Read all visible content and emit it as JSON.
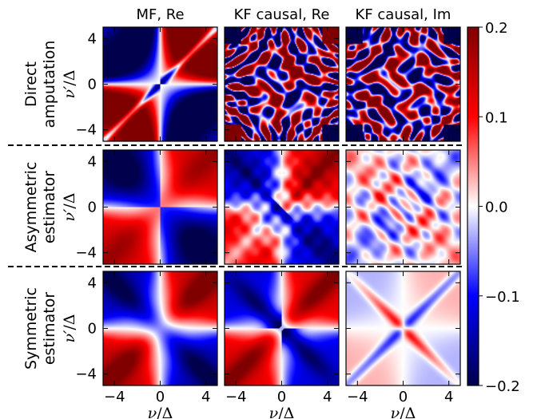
{
  "chart_data": {
    "type": "heatmap",
    "columns": [
      "MF, Re",
      "KF causal, Re",
      "KF causal, Im"
    ],
    "rows": [
      {
        "label_line1": "Direct",
        "label_line2": "amputation"
      },
      {
        "label_line1": "Asymmetric",
        "label_line2": "estimator"
      },
      {
        "label_line1": "Symmetric",
        "label_line2": "estimator"
      }
    ],
    "xlabel_var": "ν",
    "ylabel_var": "ν′",
    "axis_unit": "/Δ",
    "xlim": [
      -5,
      5
    ],
    "ylim": [
      -5,
      5
    ],
    "xticks": [
      -4,
      0,
      4
    ],
    "yticks": [
      -4,
      0,
      4
    ],
    "xtick_labels": [
      "−4",
      "0",
      "4"
    ],
    "ytick_labels": [
      "−4",
      "0",
      "4"
    ],
    "colorbar": {
      "range": [
        -0.2,
        0.2
      ],
      "ticks": [
        0.2,
        0.1,
        0.0,
        -0.1,
        -0.2
      ],
      "tick_labels": [
        "0.2",
        "0.1",
        "0.0",
        "−0.1",
        "−0.2"
      ],
      "colormap": "seismic (blue → white → red)"
    },
    "colors": {
      "negative_extreme": "#00004c",
      "negative": "#0000ff",
      "zero": "#ffffff",
      "positive": "#ff0000",
      "positive_extreme": "#800000"
    }
  }
}
